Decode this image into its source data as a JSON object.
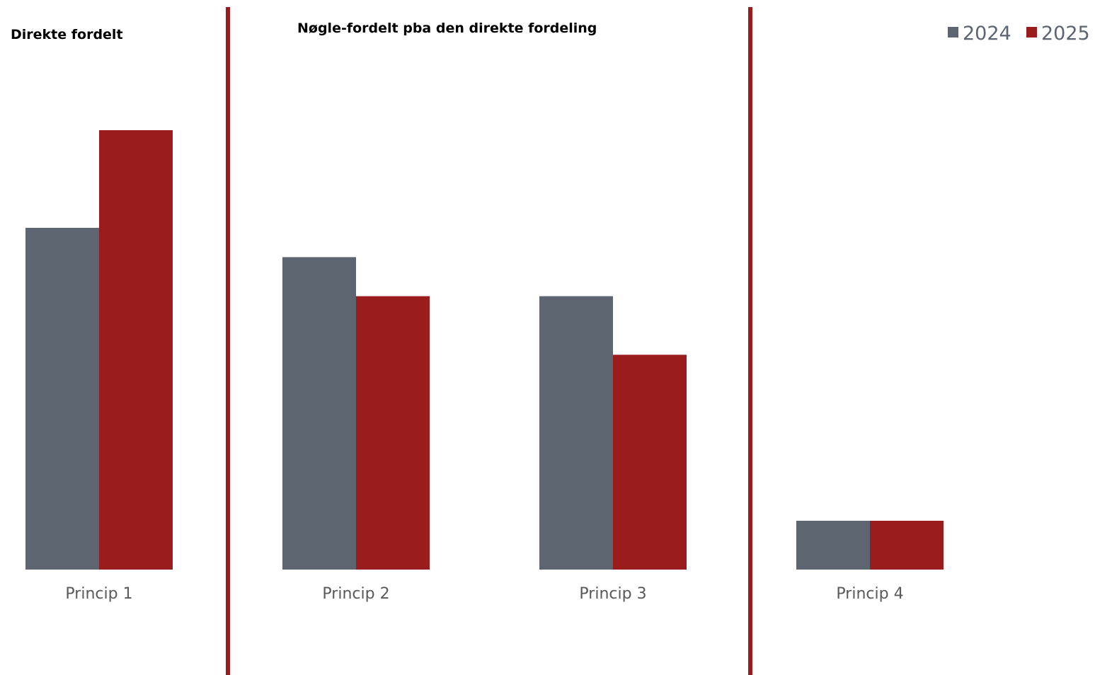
{
  "chart_data": {
    "type": "bar",
    "categories": [
      "Princip 1",
      "Princip 2",
      "Princip 3",
      "Princip 4"
    ],
    "series": [
      {
        "name": "2024",
        "color": "#5d6570",
        "values": [
          70,
          64,
          56,
          10
        ]
      },
      {
        "name": "2025",
        "color": "#9b1c1c",
        "values": [
          90,
          56,
          44,
          10
        ]
      }
    ],
    "ylim": [
      0,
      100
    ],
    "grid": false,
    "legend_position": "top-right",
    "sections": [
      {
        "title": "Direkte fordelt",
        "categories": [
          "Princip 1"
        ]
      },
      {
        "title": "Nøgle-fordelt pba den direkte fordeling",
        "categories": [
          "Princip 2",
          "Princip 3"
        ]
      },
      {
        "title": "",
        "categories": [
          "Princip 4"
        ]
      }
    ],
    "divider_color": "#9b1c1c"
  }
}
